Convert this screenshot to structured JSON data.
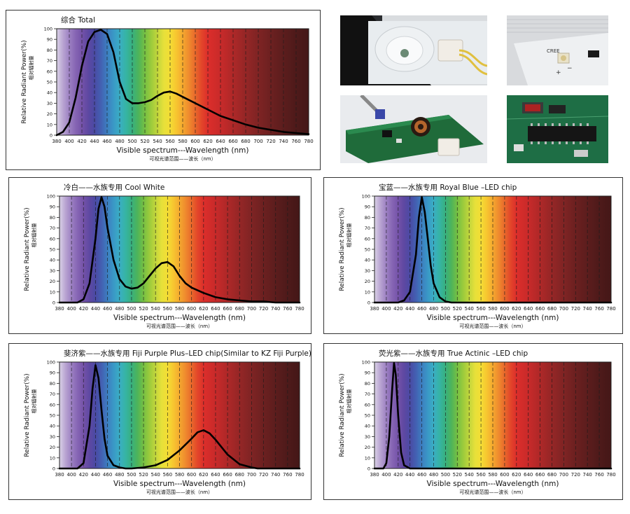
{
  "photos": [
    {
      "name": "led-lens-photo"
    },
    {
      "name": "cree-chip-photo",
      "chip_text": "CREE",
      "plus_text": "+",
      "minus_text": "−"
    },
    {
      "name": "driver-board-photo"
    },
    {
      "name": "controller-board-photo"
    }
  ],
  "panels": [
    {
      "name": "total-spectrum-panel",
      "chart_data": {
        "type": "line",
        "title": "综合 Total",
        "ylabel": "Relative Radiant Power(%)",
        "ylabel_cn": "相对辐射量",
        "xlabel": "Visible spectrum---Wavelength (nm)",
        "xlabel_cn": "可视光谱范围——波长（nm）",
        "xlim": [
          380,
          780
        ],
        "ylim": [
          0,
          100
        ],
        "x_ticks": [
          380,
          400,
          420,
          440,
          460,
          480,
          500,
          520,
          540,
          560,
          580,
          600,
          620,
          640,
          660,
          680,
          700,
          720,
          740,
          760,
          780
        ],
        "y_ticks": [
          0,
          10,
          20,
          30,
          40,
          50,
          60,
          70,
          80,
          90,
          100
        ],
        "grid": "dashed vertical lines every 20 nm",
        "series": [
          {
            "x": [
              380,
              390,
              400,
              410,
              420,
              430,
              440,
              450,
              460,
              470,
              480,
              490,
              500,
              510,
              520,
              530,
              540,
              550,
              560,
              570,
              580,
              600,
              620,
              640,
              660,
              680,
              700,
              720,
              740,
              760,
              780
            ],
            "values": [
              0,
              3,
              12,
              35,
              65,
              88,
              97,
              99,
              95,
              78,
              50,
              34,
              30,
              30,
              31,
              33,
              37,
              40,
              41,
              39,
              36,
              30,
              24,
              18,
              14,
              10,
              7,
              5,
              3,
              2,
              1
            ]
          }
        ]
      }
    },
    {
      "name": "cool-white-panel",
      "chart_data": {
        "type": "line",
        "title": "冷白——水族专用 Cool White",
        "ylabel": "Relative Radiant Power(%)",
        "ylabel_cn": "相对辐射量",
        "xlabel": "Visible spectrum---Wavelength (nm)",
        "xlabel_cn": "可视光谱范围——波长（nm）",
        "xlim": [
          380,
          780
        ],
        "ylim": [
          0,
          100
        ],
        "x_ticks": [
          380,
          400,
          420,
          440,
          460,
          480,
          500,
          520,
          540,
          560,
          580,
          600,
          620,
          640,
          660,
          680,
          700,
          720,
          740,
          760,
          780
        ],
        "y_ticks": [
          0,
          10,
          20,
          30,
          40,
          50,
          60,
          70,
          80,
          90,
          100
        ],
        "grid": "dashed vertical lines every 20 nm",
        "series": [
          {
            "x": [
              380,
              410,
              420,
              430,
              440,
              445,
              450,
              455,
              460,
              470,
              480,
              490,
              500,
              510,
              520,
              530,
              540,
              550,
              560,
              570,
              580,
              590,
              600,
              620,
              640,
              660,
              680,
              700,
              720,
              740,
              760,
              780
            ],
            "values": [
              0,
              0,
              3,
              18,
              60,
              88,
              99,
              90,
              70,
              40,
              22,
              15,
              13,
              14,
              18,
              25,
              32,
              37,
              38,
              34,
              25,
              18,
              14,
              9,
              5,
              3,
              2,
              1,
              1,
              0,
              0,
              0
            ]
          }
        ]
      }
    },
    {
      "name": "royal-blue-panel",
      "chart_data": {
        "type": "line",
        "title": "宝蓝——水族专用 Royal Blue –LED chip",
        "ylabel": "Relative Radiant Power(%)",
        "ylabel_cn": "相对辐射量",
        "xlabel": "Visible spectrum---Wavelength (nm)",
        "xlabel_cn": "可视光谱范围——波长（nm）",
        "xlim": [
          380,
          780
        ],
        "ylim": [
          0,
          100
        ],
        "x_ticks": [
          380,
          400,
          420,
          440,
          460,
          480,
          500,
          520,
          540,
          560,
          580,
          600,
          620,
          640,
          660,
          680,
          700,
          720,
          740,
          760,
          780
        ],
        "y_ticks": [
          0,
          10,
          20,
          30,
          40,
          50,
          60,
          70,
          80,
          90,
          100
        ],
        "grid": "dashed vertical lines every 20 nm",
        "series": [
          {
            "x": [
              380,
              420,
              430,
              440,
              450,
              455,
              460,
              465,
              470,
              475,
              480,
              490,
              500,
              510,
              780
            ],
            "values": [
              0,
              0,
              2,
              10,
              45,
              80,
              99,
              85,
              60,
              35,
              18,
              5,
              1,
              0,
              0
            ]
          }
        ]
      }
    },
    {
      "name": "fiji-purple-panel",
      "chart_data": {
        "type": "line",
        "title": "斐济紫——水族专用 Fiji Purple Plus–LED chip(Similar to KZ Fiji Purple)",
        "ylabel": "Relative Radiant Power(%)",
        "ylabel_cn": "相对辐射量",
        "xlabel": "Visible spectrum---Wavelength (nm)",
        "xlabel_cn": "可视光谱范围——波长（nm）",
        "xlim": [
          380,
          780
        ],
        "ylim": [
          0,
          100
        ],
        "x_ticks": [
          380,
          400,
          420,
          440,
          460,
          480,
          500,
          520,
          540,
          560,
          580,
          600,
          620,
          640,
          660,
          680,
          700,
          720,
          740,
          760,
          780
        ],
        "y_ticks": [
          0,
          10,
          20,
          30,
          40,
          50,
          60,
          70,
          80,
          90,
          100
        ],
        "grid": "dashed vertical lines every 20 nm",
        "series": [
          {
            "x": [
              380,
              410,
              420,
              430,
              435,
              440,
              445,
              450,
              455,
              460,
              470,
              480,
              490,
              500,
              520,
              540,
              560,
              580,
              600,
              610,
              620,
              630,
              640,
              660,
              680,
              700,
              710,
              780
            ],
            "values": [
              0,
              0,
              5,
              40,
              75,
              97,
              85,
              55,
              28,
              12,
              3,
              1,
              0,
              0,
              1,
              3,
              8,
              17,
              28,
              34,
              36,
              33,
              27,
              13,
              4,
              1,
              0,
              0
            ]
          }
        ]
      }
    },
    {
      "name": "true-actinic-panel",
      "chart_data": {
        "type": "line",
        "title": "荧光紫——水族专用 True Actinic –LED chip",
        "ylabel": "Relative Radiant Power(%)",
        "ylabel_cn": "相对辐射量",
        "xlabel": "Visible spectrum---Wavelength (nm)",
        "xlabel_cn": "可视光谱范围——波长（nm）",
        "xlim": [
          380,
          780
        ],
        "ylim": [
          0,
          100
        ],
        "x_ticks": [
          380,
          400,
          420,
          440,
          460,
          480,
          500,
          520,
          540,
          560,
          580,
          600,
          620,
          640,
          660,
          680,
          700,
          720,
          740,
          760,
          780
        ],
        "y_ticks": [
          0,
          10,
          20,
          30,
          40,
          50,
          60,
          70,
          80,
          90,
          100
        ],
        "grid": "dashed vertical lines every 20 nm",
        "series": [
          {
            "x": [
              380,
              395,
              400,
              405,
              410,
              413,
              416,
              420,
              425,
              430,
              440,
              780
            ],
            "values": [
              0,
              0,
              5,
              30,
              75,
              99,
              88,
              50,
              15,
              3,
              0,
              0
            ]
          }
        ]
      }
    }
  ]
}
